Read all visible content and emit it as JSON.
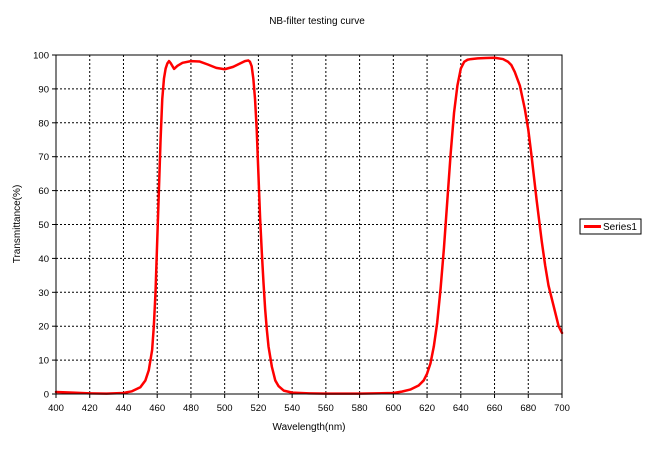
{
  "chart_data": {
    "type": "line",
    "title": "NB-filter testing curve",
    "xlabel": "Wavelength(nm)",
    "ylabel": "Transmittance(%)",
    "xlim": [
      400,
      700
    ],
    "ylim": [
      0,
      100
    ],
    "x_ticks": [
      400,
      420,
      440,
      460,
      480,
      500,
      520,
      540,
      560,
      580,
      600,
      620,
      640,
      660,
      680,
      700
    ],
    "y_ticks": [
      0,
      10,
      20,
      30,
      40,
      50,
      60,
      70,
      80,
      90,
      100
    ],
    "grid": true,
    "legend": "right",
    "colors": {
      "series": "#ff0000",
      "grid": "#000000",
      "axis": "#000000"
    },
    "series": [
      {
        "name": "Series1",
        "x": [
          400,
          410,
          420,
          430,
          440,
          445,
          450,
          453,
          455,
          457,
          458,
          459,
          460,
          461,
          462,
          463,
          464,
          465,
          466,
          467,
          468,
          470,
          472,
          475,
          480,
          485,
          490,
          495,
          500,
          505,
          510,
          512,
          514,
          515,
          516,
          517,
          518,
          519,
          520,
          521,
          522,
          523,
          524,
          525,
          526,
          528,
          530,
          532,
          535,
          540,
          550,
          560,
          580,
          600,
          605,
          610,
          615,
          618,
          620,
          622,
          624,
          626,
          628,
          630,
          632,
          634,
          636,
          638,
          640,
          642,
          644,
          646,
          648,
          650,
          655,
          660,
          665,
          668,
          670,
          672,
          675,
          678,
          680,
          682,
          685,
          688,
          690,
          692,
          695,
          698,
          700
        ],
        "y": [
          0.6,
          0.4,
          0.2,
          0.1,
          0.3,
          0.8,
          2,
          4,
          7,
          13,
          20,
          30,
          45,
          60,
          75,
          87,
          93,
          96,
          97.5,
          98.2,
          97.6,
          95.9,
          96.8,
          97.7,
          98.2,
          98.1,
          97.2,
          96.2,
          95.8,
          96.5,
          97.7,
          98.2,
          98.4,
          98,
          96.7,
          93,
          87,
          78,
          65,
          52,
          42,
          33,
          25,
          19,
          14,
          8,
          4,
          2.3,
          1,
          0.4,
          0.2,
          0.1,
          0.1,
          0.3,
          0.7,
          1.3,
          2.5,
          4,
          6,
          9,
          14,
          21,
          31,
          43,
          57,
          71,
          83,
          91,
          96,
          98,
          98.6,
          98.8,
          98.9,
          99,
          99.1,
          99.2,
          98.8,
          98,
          97,
          95,
          91,
          84,
          78,
          70,
          57,
          45,
          38,
          32,
          26,
          20,
          18
        ]
      }
    ]
  }
}
